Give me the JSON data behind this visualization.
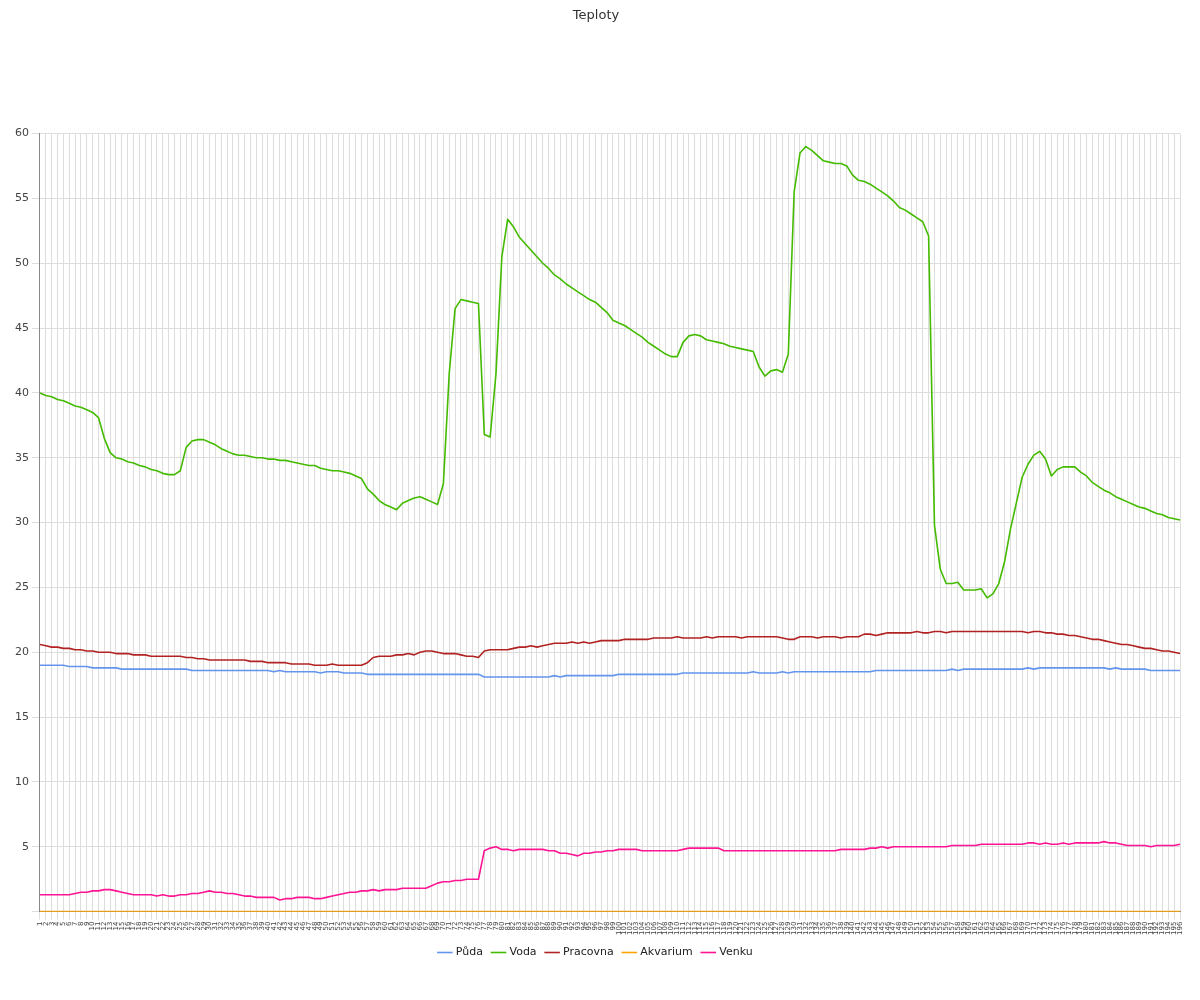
{
  "chart_data": {
    "type": "line",
    "title": "Teploty",
    "categories": [
      "1",
      "2",
      "3",
      "4",
      "5",
      "6",
      "7",
      "8",
      "9",
      "10",
      "11",
      "12",
      "13",
      "14",
      "15",
      "16",
      "17",
      "18",
      "19",
      "20",
      "21",
      "22",
      "23",
      "24",
      "25",
      "26",
      "27",
      "28",
      "29",
      "30",
      "31",
      "32",
      "33",
      "34",
      "35",
      "36",
      "37",
      "38",
      "39",
      "40",
      "41",
      "42",
      "43",
      "44",
      "45",
      "46",
      "47",
      "48",
      "49",
      "50",
      "51",
      "52",
      "53",
      "54",
      "55",
      "56",
      "57",
      "58",
      "59",
      "60",
      "61",
      "62",
      "63",
      "64",
      "65",
      "66",
      "67",
      "68",
      "69",
      "70",
      "71",
      "72",
      "73",
      "74",
      "75",
      "76",
      "77",
      "78",
      "79",
      "80",
      "81",
      "82",
      "83",
      "84",
      "85",
      "86",
      "87",
      "88",
      "89",
      "90",
      "91",
      "92",
      "93",
      "94",
      "95",
      "96",
      "97",
      "98",
      "99",
      "100",
      "101",
      "102",
      "103",
      "104",
      "105",
      "106",
      "107",
      "108",
      "109",
      "110",
      "111",
      "112",
      "113",
      "114",
      "115",
      "116",
      "117",
      "118",
      "119",
      "120",
      "121",
      "122",
      "123",
      "124",
      "125",
      "126",
      "127",
      "128",
      "129",
      "130",
      "131",
      "132",
      "133",
      "134",
      "135",
      "136",
      "137",
      "138",
      "139",
      "140",
      "141",
      "142",
      "143",
      "144",
      "145",
      "146",
      "147",
      "148",
      "149",
      "150",
      "151",
      "152",
      "153",
      "154",
      "155",
      "156",
      "157",
      "158",
      "159",
      "160",
      "161",
      "162",
      "163",
      "164",
      "165",
      "166",
      "167",
      "168",
      "169",
      "170",
      "171",
      "172",
      "173",
      "174",
      "175",
      "176",
      "177",
      "178",
      "179",
      "180",
      "181",
      "182",
      "183",
      "184",
      "185",
      "186",
      "187",
      "188",
      "189",
      "190",
      "191",
      "192",
      "193",
      "194",
      "195",
      "196"
    ],
    "series": [
      {
        "name": "Půda",
        "color": "#6495ed",
        "values": [
          19.0,
          19.0,
          19.0,
          19.0,
          19.0,
          18.9,
          18.9,
          18.9,
          18.9,
          18.8,
          18.8,
          18.8,
          18.8,
          18.8,
          18.7,
          18.7,
          18.7,
          18.7,
          18.7,
          18.7,
          18.7,
          18.7,
          18.7,
          18.7,
          18.7,
          18.7,
          18.6,
          18.6,
          18.6,
          18.6,
          18.6,
          18.6,
          18.6,
          18.6,
          18.6,
          18.6,
          18.6,
          18.6,
          18.6,
          18.6,
          18.5,
          18.6,
          18.5,
          18.5,
          18.5,
          18.5,
          18.5,
          18.5,
          18.4,
          18.5,
          18.5,
          18.5,
          18.4,
          18.4,
          18.4,
          18.4,
          18.3,
          18.3,
          18.3,
          18.3,
          18.3,
          18.3,
          18.3,
          18.3,
          18.3,
          18.3,
          18.3,
          18.3,
          18.3,
          18.3,
          18.3,
          18.3,
          18.3,
          18.3,
          18.3,
          18.3,
          18.1,
          18.1,
          18.1,
          18.1,
          18.1,
          18.1,
          18.1,
          18.1,
          18.1,
          18.1,
          18.1,
          18.1,
          18.2,
          18.1,
          18.2,
          18.2,
          18.2,
          18.2,
          18.2,
          18.2,
          18.2,
          18.2,
          18.2,
          18.3,
          18.3,
          18.3,
          18.3,
          18.3,
          18.3,
          18.3,
          18.3,
          18.3,
          18.3,
          18.3,
          18.4,
          18.4,
          18.4,
          18.4,
          18.4,
          18.4,
          18.4,
          18.4,
          18.4,
          18.4,
          18.4,
          18.4,
          18.5,
          18.4,
          18.4,
          18.4,
          18.4,
          18.5,
          18.4,
          18.5,
          18.5,
          18.5,
          18.5,
          18.5,
          18.5,
          18.5,
          18.5,
          18.5,
          18.5,
          18.5,
          18.5,
          18.5,
          18.5,
          18.6,
          18.6,
          18.6,
          18.6,
          18.6,
          18.6,
          18.6,
          18.6,
          18.6,
          18.6,
          18.6,
          18.6,
          18.6,
          18.7,
          18.6,
          18.7,
          18.7,
          18.7,
          18.7,
          18.7,
          18.7,
          18.7,
          18.7,
          18.7,
          18.7,
          18.7,
          18.8,
          18.7,
          18.8,
          18.8,
          18.8,
          18.8,
          18.8,
          18.8,
          18.8,
          18.8,
          18.8,
          18.8,
          18.8,
          18.8,
          18.7,
          18.8,
          18.7,
          18.7,
          18.7,
          18.7,
          18.7,
          18.6,
          18.6,
          18.6,
          18.6,
          18.6,
          18.6
        ]
      },
      {
        "name": "Voda",
        "color": "#44bb00",
        "values": [
          40.0,
          39.8,
          39.7,
          39.5,
          39.4,
          39.2,
          39.0,
          38.9,
          38.7,
          38.5,
          38.1,
          36.5,
          35.4,
          35.0,
          34.9,
          34.7,
          34.6,
          34.4,
          34.3,
          34.1,
          34.0,
          33.8,
          33.7,
          33.7,
          34.0,
          35.8,
          36.3,
          36.4,
          36.4,
          36.2,
          36.0,
          35.7,
          35.5,
          35.3,
          35.2,
          35.2,
          35.1,
          35.0,
          35.0,
          34.9,
          34.9,
          34.8,
          34.8,
          34.7,
          34.6,
          34.5,
          34.4,
          34.4,
          34.2,
          34.1,
          34.0,
          34.0,
          33.9,
          33.8,
          33.6,
          33.4,
          32.6,
          32.2,
          31.7,
          31.4,
          31.2,
          31.0,
          31.5,
          31.7,
          31.9,
          32.0,
          31.8,
          31.6,
          31.4,
          33.0,
          41.5,
          46.5,
          47.2,
          47.1,
          47.0,
          46.9,
          36.8,
          36.6,
          41.5,
          50.5,
          53.4,
          52.8,
          52.0,
          51.5,
          51.0,
          50.5,
          50.0,
          49.6,
          49.1,
          48.8,
          48.4,
          48.1,
          47.8,
          47.5,
          47.2,
          47.0,
          46.6,
          46.2,
          45.6,
          45.4,
          45.2,
          44.9,
          44.6,
          44.3,
          43.9,
          43.6,
          43.3,
          43.0,
          42.8,
          42.8,
          43.9,
          44.4,
          44.5,
          44.4,
          44.1,
          44.0,
          43.9,
          43.8,
          43.6,
          43.5,
          43.4,
          43.3,
          43.2,
          42.0,
          41.3,
          41.7,
          41.8,
          41.6,
          43.0,
          55.5,
          58.5,
          59.0,
          58.7,
          58.3,
          57.9,
          57.8,
          57.7,
          57.7,
          57.5,
          56.8,
          56.4,
          56.3,
          56.1,
          55.8,
          55.5,
          55.2,
          54.8,
          54.3,
          54.1,
          53.8,
          53.5,
          53.2,
          52.1,
          29.8,
          26.4,
          25.3,
          25.3,
          25.4,
          24.8,
          24.8,
          24.8,
          24.9,
          24.2,
          24.5,
          25.3,
          27.0,
          29.5,
          31.5,
          33.5,
          34.5,
          35.2,
          35.5,
          34.9,
          33.6,
          34.1,
          34.3,
          34.3,
          34.3,
          33.9,
          33.6,
          33.1,
          32.8,
          32.5,
          32.3,
          32.0,
          31.8,
          31.6,
          31.4,
          31.2,
          31.1,
          30.9,
          30.7,
          30.6,
          30.4,
          30.3,
          30.2
        ]
      },
      {
        "name": "Pracovna",
        "color": "#b22222",
        "values": [
          20.6,
          20.5,
          20.4,
          20.4,
          20.3,
          20.3,
          20.2,
          20.2,
          20.1,
          20.1,
          20.0,
          20.0,
          20.0,
          19.9,
          19.9,
          19.9,
          19.8,
          19.8,
          19.8,
          19.7,
          19.7,
          19.7,
          19.7,
          19.7,
          19.7,
          19.6,
          19.6,
          19.5,
          19.5,
          19.4,
          19.4,
          19.4,
          19.4,
          19.4,
          19.4,
          19.4,
          19.3,
          19.3,
          19.3,
          19.2,
          19.2,
          19.2,
          19.2,
          19.1,
          19.1,
          19.1,
          19.1,
          19.0,
          19.0,
          19.0,
          19.1,
          19.0,
          19.0,
          19.0,
          19.0,
          19.0,
          19.2,
          19.6,
          19.7,
          19.7,
          19.7,
          19.8,
          19.8,
          19.9,
          19.8,
          20.0,
          20.1,
          20.1,
          20.0,
          19.9,
          19.9,
          19.9,
          19.8,
          19.7,
          19.7,
          19.6,
          20.1,
          20.2,
          20.2,
          20.2,
          20.2,
          20.3,
          20.4,
          20.4,
          20.5,
          20.4,
          20.5,
          20.6,
          20.7,
          20.7,
          20.7,
          20.8,
          20.7,
          20.8,
          20.7,
          20.8,
          20.9,
          20.9,
          20.9,
          20.9,
          21.0,
          21.0,
          21.0,
          21.0,
          21.0,
          21.1,
          21.1,
          21.1,
          21.1,
          21.2,
          21.1,
          21.1,
          21.1,
          21.1,
          21.2,
          21.1,
          21.2,
          21.2,
          21.2,
          21.2,
          21.1,
          21.2,
          21.2,
          21.2,
          21.2,
          21.2,
          21.2,
          21.1,
          21.0,
          21.0,
          21.2,
          21.2,
          21.2,
          21.1,
          21.2,
          21.2,
          21.2,
          21.1,
          21.2,
          21.2,
          21.2,
          21.4,
          21.4,
          21.3,
          21.4,
          21.5,
          21.5,
          21.5,
          21.5,
          21.5,
          21.6,
          21.5,
          21.5,
          21.6,
          21.6,
          21.5,
          21.6,
          21.6,
          21.6,
          21.6,
          21.6,
          21.6,
          21.6,
          21.6,
          21.6,
          21.6,
          21.6,
          21.6,
          21.6,
          21.5,
          21.6,
          21.6,
          21.5,
          21.5,
          21.4,
          21.4,
          21.3,
          21.3,
          21.2,
          21.1,
          21.0,
          21.0,
          20.9,
          20.8,
          20.7,
          20.6,
          20.6,
          20.5,
          20.4,
          20.3,
          20.3,
          20.2,
          20.1,
          20.1,
          20.0,
          19.9
        ]
      },
      {
        "name": "Akvarium",
        "color": "#ffa500",
        "values": [
          0,
          0,
          0,
          0,
          0,
          0,
          0,
          0,
          0,
          0,
          0,
          0,
          0,
          0,
          0,
          0,
          0,
          0,
          0,
          0,
          0,
          0,
          0,
          0,
          0,
          0,
          0,
          0,
          0,
          0,
          0,
          0,
          0,
          0,
          0,
          0,
          0,
          0,
          0,
          0,
          0,
          0,
          0,
          0,
          0,
          0,
          0,
          0,
          0,
          0,
          0,
          0,
          0,
          0,
          0,
          0,
          0,
          0,
          0,
          0,
          0,
          0,
          0,
          0,
          0,
          0,
          0,
          0,
          0,
          0,
          0,
          0,
          0,
          0,
          0,
          0,
          0,
          0,
          0,
          0,
          0,
          0,
          0,
          0,
          0,
          0,
          0,
          0,
          0,
          0,
          0,
          0,
          0,
          0,
          0,
          0,
          0,
          0,
          0,
          0,
          0,
          0,
          0,
          0,
          0,
          0,
          0,
          0,
          0,
          0,
          0,
          0,
          0,
          0,
          0,
          0,
          0,
          0,
          0,
          0,
          0,
          0,
          0,
          0,
          0,
          0,
          0,
          0,
          0,
          0,
          0,
          0,
          0,
          0,
          0,
          0,
          0,
          0,
          0,
          0,
          0,
          0,
          0,
          0,
          0,
          0,
          0,
          0,
          0,
          0,
          0,
          0,
          0,
          0,
          0,
          0,
          0,
          0,
          0,
          0,
          0,
          0,
          0,
          0,
          0,
          0,
          0,
          0,
          0,
          0,
          0,
          0,
          0,
          0,
          0,
          0,
          0,
          0,
          0,
          0,
          0,
          0,
          0,
          0,
          0,
          0,
          0,
          0,
          0,
          0,
          0,
          0,
          0,
          0,
          0,
          0
        ]
      },
      {
        "name": "Venku",
        "color": "#ff1493",
        "values": [
          1.3,
          1.3,
          1.3,
          1.3,
          1.3,
          1.3,
          1.4,
          1.5,
          1.5,
          1.6,
          1.6,
          1.7,
          1.7,
          1.6,
          1.5,
          1.4,
          1.3,
          1.3,
          1.3,
          1.3,
          1.2,
          1.3,
          1.2,
          1.2,
          1.3,
          1.3,
          1.4,
          1.4,
          1.5,
          1.6,
          1.5,
          1.5,
          1.4,
          1.4,
          1.3,
          1.2,
          1.2,
          1.1,
          1.1,
          1.1,
          1.1,
          0.9,
          1.0,
          1.0,
          1.1,
          1.1,
          1.1,
          1.0,
          1.0,
          1.1,
          1.2,
          1.3,
          1.4,
          1.5,
          1.5,
          1.6,
          1.6,
          1.7,
          1.6,
          1.7,
          1.7,
          1.7,
          1.8,
          1.8,
          1.8,
          1.8,
          1.8,
          2.0,
          2.2,
          2.3,
          2.3,
          2.4,
          2.4,
          2.5,
          2.5,
          2.5,
          4.7,
          4.9,
          5.0,
          4.8,
          4.8,
          4.7,
          4.8,
          4.8,
          4.8,
          4.8,
          4.8,
          4.7,
          4.7,
          4.5,
          4.5,
          4.4,
          4.3,
          4.5,
          4.5,
          4.6,
          4.6,
          4.7,
          4.7,
          4.8,
          4.8,
          4.8,
          4.8,
          4.7,
          4.7,
          4.7,
          4.7,
          4.7,
          4.7,
          4.7,
          4.8,
          4.9,
          4.9,
          4.9,
          4.9,
          4.9,
          4.9,
          4.7,
          4.7,
          4.7,
          4.7,
          4.7,
          4.7,
          4.7,
          4.7,
          4.7,
          4.7,
          4.7,
          4.7,
          4.7,
          4.7,
          4.7,
          4.7,
          4.7,
          4.7,
          4.7,
          4.7,
          4.8,
          4.8,
          4.8,
          4.8,
          4.8,
          4.9,
          4.9,
          5.0,
          4.9,
          5.0,
          5.0,
          5.0,
          5.0,
          5.0,
          5.0,
          5.0,
          5.0,
          5.0,
          5.0,
          5.1,
          5.1,
          5.1,
          5.1,
          5.1,
          5.2,
          5.2,
          5.2,
          5.2,
          5.2,
          5.2,
          5.2,
          5.2,
          5.3,
          5.3,
          5.2,
          5.3,
          5.2,
          5.2,
          5.3,
          5.2,
          5.3,
          5.3,
          5.3,
          5.3,
          5.3,
          5.4,
          5.3,
          5.3,
          5.2,
          5.1,
          5.1,
          5.1,
          5.1,
          5.0,
          5.1,
          5.1,
          5.1,
          5.1,
          5.2
        ]
      }
    ],
    "ylim": [
      0,
      60
    ],
    "yticks": [
      {
        "value": 0,
        "label": null
      },
      5,
      10,
      15,
      20,
      25,
      30,
      35,
      40,
      45,
      50,
      55,
      60
    ],
    "grid": true,
    "legend": "bottom",
    "marker": "none",
    "line_style": "solid"
  }
}
